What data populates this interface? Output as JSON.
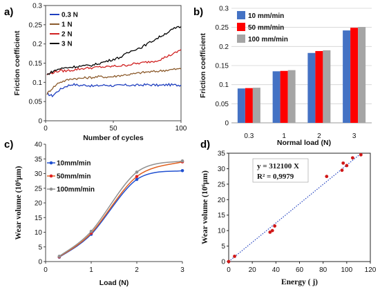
{
  "figure": {
    "panels": [
      "a)",
      "b)",
      "c)",
      "d)"
    ]
  },
  "chart_data": [
    {
      "id": "a",
      "type": "line",
      "title": "",
      "xlabel": "Number of cycles",
      "ylabel": "Friction coefficient",
      "xlim": [
        0,
        100
      ],
      "ylim": [
        0,
        0.3
      ],
      "xticks": [
        0,
        50,
        100
      ],
      "yticks": [
        0,
        0.05,
        0.1,
        0.15,
        0.2,
        0.25,
        0.3
      ],
      "ytick_labels": [
        "0",
        "0.05",
        "0.1",
        "0.15",
        "0.2",
        "0.25",
        "0.3"
      ],
      "legend_position": "top-left",
      "x": [
        1,
        5,
        10,
        15,
        20,
        25,
        30,
        35,
        40,
        45,
        50,
        55,
        60,
        65,
        70,
        75,
        80,
        85,
        90,
        95,
        100
      ],
      "series": [
        {
          "name": "0.3 N",
          "color": "#1f3fbf",
          "values": [
            0.07,
            0.065,
            0.08,
            0.09,
            0.095,
            0.092,
            0.093,
            0.09,
            0.092,
            0.093,
            0.091,
            0.092,
            0.093,
            0.092,
            0.093,
            0.094,
            0.093,
            0.092,
            0.094,
            0.093,
            0.093
          ]
        },
        {
          "name": "1 N",
          "color": "#8b5a2b",
          "values": [
            0.07,
            0.085,
            0.1,
            0.105,
            0.11,
            0.11,
            0.112,
            0.113,
            0.115,
            0.114,
            0.115,
            0.118,
            0.12,
            0.122,
            0.125,
            0.127,
            0.128,
            0.13,
            0.132,
            0.134,
            0.135
          ]
        },
        {
          "name": "2 N",
          "color": "#d02020",
          "values": [
            0.12,
            0.125,
            0.13,
            0.13,
            0.132,
            0.135,
            0.137,
            0.138,
            0.14,
            0.14,
            0.142,
            0.143,
            0.145,
            0.148,
            0.15,
            0.153,
            0.155,
            0.16,
            0.168,
            0.175,
            0.185
          ]
        },
        {
          "name": "3 N",
          "color": "#000000",
          "values": [
            0.12,
            0.128,
            0.135,
            0.138,
            0.14,
            0.142,
            0.143,
            0.145,
            0.15,
            0.155,
            0.16,
            0.165,
            0.175,
            0.185,
            0.19,
            0.2,
            0.21,
            0.22,
            0.23,
            0.24,
            0.245
          ]
        }
      ]
    },
    {
      "id": "b",
      "type": "bar",
      "title": "",
      "xlabel": "Normal load (N)",
      "ylabel": "Friction coefficient",
      "categories": [
        "0.3",
        "1",
        "2",
        "3"
      ],
      "ylim": [
        0,
        0.3
      ],
      "yticks": [
        0,
        0.05,
        0.1,
        0.15,
        0.2,
        0.25,
        0.3
      ],
      "ytick_labels": [
        "0",
        "0.05",
        "0.1",
        "0.15",
        "0.2",
        "0.25",
        "0.3"
      ],
      "grid": "horizontal",
      "legend_position": "top-left",
      "series": [
        {
          "name": "10 mm/min",
          "color": "#4472c4",
          "values": [
            0.09,
            0.135,
            0.183,
            0.242
          ]
        },
        {
          "name": "50 mm/min",
          "color": "#ff0000",
          "values": [
            0.091,
            0.136,
            0.188,
            0.249
          ]
        },
        {
          "name": "100 mm/min",
          "color": "#a5a5a5",
          "values": [
            0.092,
            0.138,
            0.19,
            0.251
          ]
        }
      ]
    },
    {
      "id": "c",
      "type": "line",
      "title": "",
      "xlabel": "Load (N)",
      "ylabel": "Wear volume (10⁶µm)",
      "xlim": [
        0,
        3
      ],
      "ylim": [
        0,
        40
      ],
      "xticks": [
        0,
        1,
        2,
        3
      ],
      "yticks": [
        0,
        5,
        10,
        15,
        20,
        25,
        30,
        35,
        40
      ],
      "legend_position": "top-left",
      "x": [
        0.3,
        1,
        2,
        3
      ],
      "series": [
        {
          "name": "10mm/min",
          "color": "#1f4fd0",
          "values": [
            1.5,
            9.3,
            28,
            31
          ]
        },
        {
          "name": "50mm/min",
          "color": "#e06020",
          "values": [
            1.6,
            9.7,
            29,
            34
          ]
        },
        {
          "name": "100mm/min",
          "color": "#909090",
          "values": [
            1.8,
            10.3,
            30.5,
            34.3
          ]
        }
      ]
    },
    {
      "id": "d",
      "type": "scatter",
      "title": "",
      "xlabel": "Energy ( j)",
      "ylabel": "Wear volume (10⁶µm)",
      "xlim": [
        0,
        120
      ],
      "ylim": [
        0,
        35
      ],
      "xticks": [
        0,
        20,
        40,
        60,
        80,
        100,
        120
      ],
      "yticks": [
        0,
        5,
        10,
        15,
        20,
        25,
        30,
        35
      ],
      "legend_position": "top-left",
      "equation": "y = 312100 X",
      "r_squared": "R² = 0,9979",
      "trendline": {
        "x": [
          0,
          112
        ],
        "y": [
          0,
          34.9
        ]
      },
      "points": [
        {
          "x": 0,
          "y": 0
        },
        {
          "x": 5,
          "y": 1.7
        },
        {
          "x": 35,
          "y": 9.5
        },
        {
          "x": 37,
          "y": 10
        },
        {
          "x": 39,
          "y": 11.5
        },
        {
          "x": 83,
          "y": 27.5
        },
        {
          "x": 96,
          "y": 29.5
        },
        {
          "x": 97,
          "y": 31.8
        },
        {
          "x": 100,
          "y": 31
        },
        {
          "x": 105,
          "y": 33.5
        },
        {
          "x": 112,
          "y": 34.5
        }
      ]
    }
  ]
}
